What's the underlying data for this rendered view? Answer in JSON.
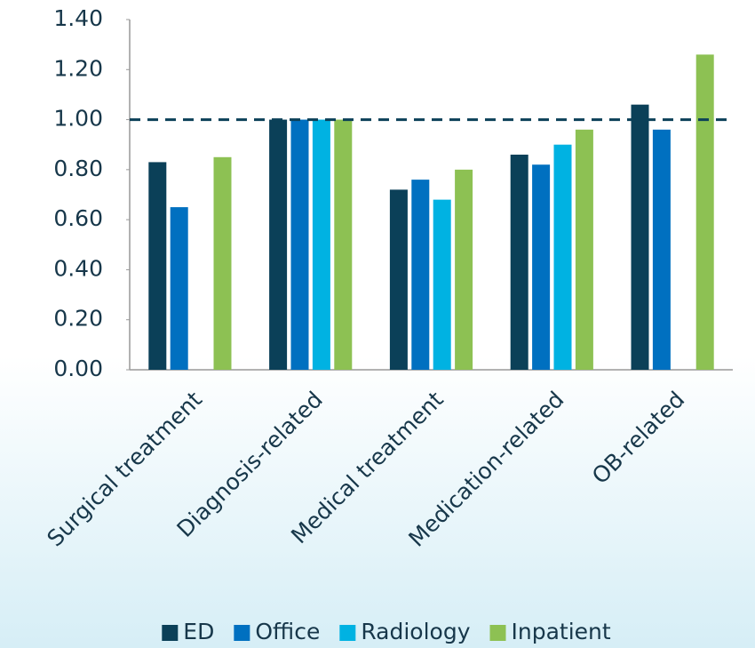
{
  "chart_data": {
    "type": "bar",
    "categories": [
      "Surgical treatment",
      "Diagnosis-related",
      "Medical treatment",
      "Medication-related",
      "OB-related"
    ],
    "series": [
      {
        "name": "ED",
        "color": "#0b4058",
        "values": [
          0.83,
          1.0,
          0.72,
          0.86,
          1.06
        ]
      },
      {
        "name": "Office",
        "color": "#0070c0",
        "values": [
          0.65,
          1.0,
          0.76,
          0.82,
          0.96
        ]
      },
      {
        "name": "Radiology",
        "color": "#00b2e2",
        "values": [
          null,
          1.0,
          0.68,
          0.9,
          null
        ]
      },
      {
        "name": "Inpatient",
        "color": "#8dc153",
        "values": [
          0.85,
          1.0,
          0.8,
          0.96,
          1.26
        ]
      }
    ],
    "ylim": [
      0,
      1.4
    ],
    "yticks": [
      {
        "value": 0,
        "label": "0.00"
      },
      {
        "value": 0.2,
        "label": "0.20"
      },
      {
        "value": 0.4,
        "label": "0.40"
      },
      {
        "value": 0.6,
        "label": "0.60"
      },
      {
        "value": 0.8,
        "label": "0.80"
      },
      {
        "value": 1.0,
        "label": "1.00"
      },
      {
        "value": 1.2,
        "label": "1.20"
      },
      {
        "value": 1.4,
        "label": "1.40"
      }
    ],
    "reference_line": 1.0,
    "grid": false,
    "legend": "bottom"
  }
}
